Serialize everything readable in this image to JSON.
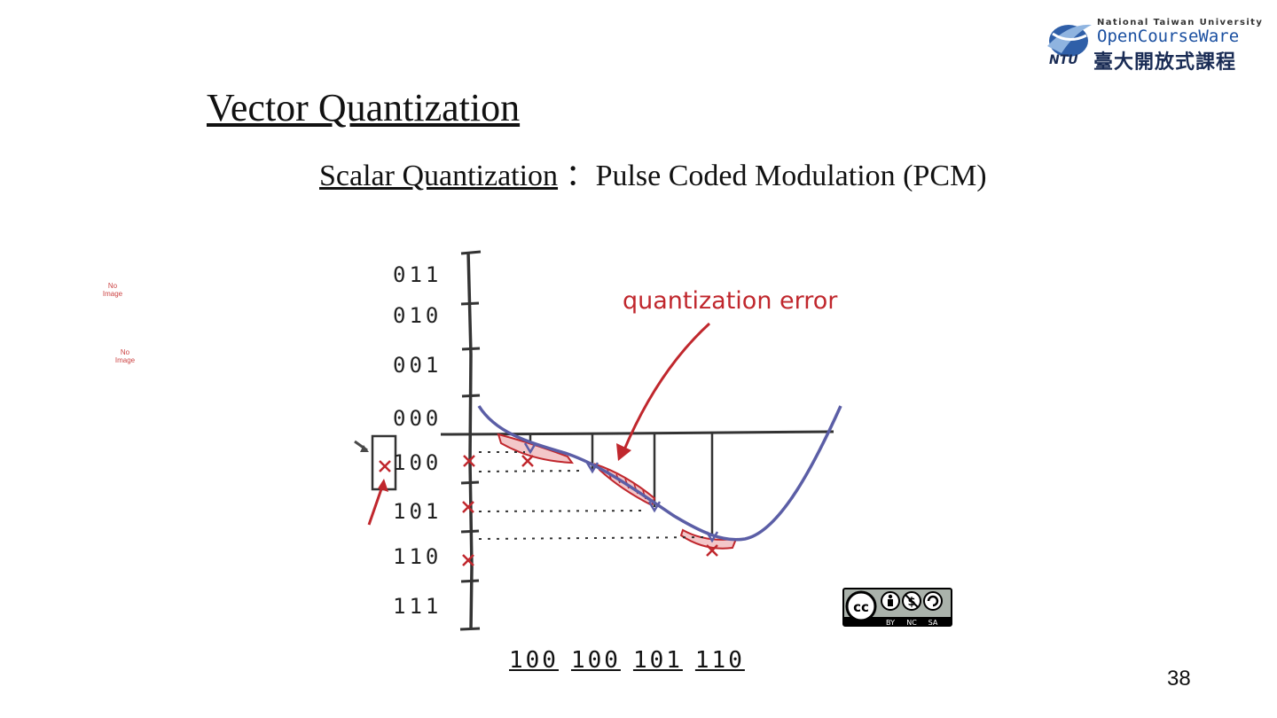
{
  "title": "Vector Quantization",
  "subtitle": {
    "underlined": "Scalar Quantization",
    "separator": " ：",
    "rest": "Pulse Coded Modulation (PCM)"
  },
  "logo": {
    "university": "National Taiwan University",
    "ocw": "OpenCourseWare",
    "chinese": "臺大開放式課程",
    "ntu": "NTU"
  },
  "no_image_placeholders": [
    "No Image",
    "No Image"
  ],
  "code_levels": [
    "011",
    "010",
    "001",
    "000",
    "100",
    "101",
    "110",
    "111"
  ],
  "annotation": "quantization error",
  "bit_sequence": [
    "100",
    "100",
    "101",
    "110"
  ],
  "license_badge": {
    "labels": [
      "BY",
      "NC",
      "SA"
    ]
  },
  "page_number": "38",
  "colors": {
    "signal": "#5b5ea6",
    "error": "#c0272d",
    "axis": "#333333",
    "logo_blue": "#1a4fa0"
  }
}
